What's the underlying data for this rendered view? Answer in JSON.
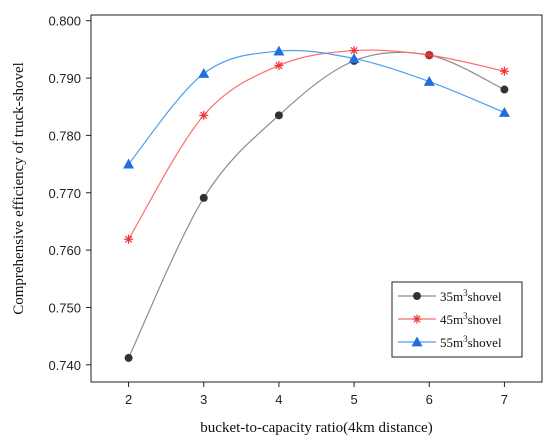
{
  "chart_data": {
    "type": "line",
    "xlabel": "bucket-to-capacity ratio(4km distance)",
    "ylabel": "Comprehensive efficiency of truck-shovel",
    "x": [
      2,
      3,
      4,
      5,
      6,
      7
    ],
    "xlim": [
      1.5,
      7.5
    ],
    "ylim": [
      0.737,
      0.801
    ],
    "y_ticks": [
      0.74,
      0.75,
      0.76,
      0.77,
      0.78,
      0.79,
      0.8
    ],
    "y_tick_labels": [
      "0.740",
      "0.750",
      "0.760",
      "0.770",
      "0.780",
      "0.790",
      "0.800"
    ],
    "x_tick_labels": [
      "2",
      "3",
      "4",
      "5",
      "6",
      "7"
    ],
    "legend_position": "bottom-right",
    "grid": false,
    "series": [
      {
        "label_prefix": "35m",
        "label_sup": "3",
        "label_suffix": "shovel",
        "marker": "circle",
        "line_color": "#8c8c8c",
        "marker_color": "#333333",
        "values": [
          0.7412,
          0.7691,
          0.7835,
          0.793,
          0.794,
          0.788
        ]
      },
      {
        "label_prefix": "45m",
        "label_sup": "3",
        "label_suffix": "shovel",
        "marker": "asterisk",
        "line_color": "#ff6b6b",
        "marker_color": "#ee3333",
        "values": [
          0.7619,
          0.7835,
          0.7922,
          0.7948,
          0.794,
          0.7912
        ]
      },
      {
        "label_prefix": "55m",
        "label_sup": "3",
        "label_suffix": "shovel",
        "marker": "triangle",
        "line_color": "#4f9df0",
        "marker_color": "#1f6fe0",
        "values": [
          0.775,
          0.7908,
          0.7947,
          0.7934,
          0.7894,
          0.784
        ]
      }
    ]
  }
}
